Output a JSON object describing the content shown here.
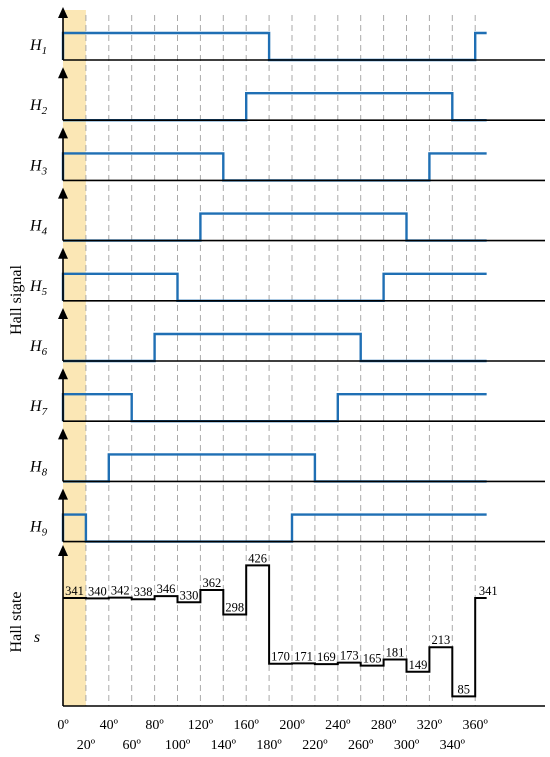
{
  "chart_data": {
    "type": "line",
    "ylabel_signals": "Hall signal",
    "ylabel_state": "Hall state",
    "state_symbol": "s",
    "x_ticks": [
      0,
      20,
      40,
      60,
      80,
      100,
      120,
      140,
      160,
      180,
      200,
      220,
      240,
      260,
      280,
      300,
      320,
      340,
      360
    ],
    "x_tick_labels": [
      "0º",
      "20º",
      "40º",
      "60º",
      "80º",
      "100º",
      "120º",
      "140º",
      "160º",
      "180º",
      "200º",
      "220º",
      "240º",
      "260º",
      "280º",
      "300º",
      "320º",
      "340º",
      "360º"
    ],
    "xlim": [
      0,
      370
    ],
    "highlight_range": [
      0,
      20
    ],
    "colors": {
      "signal": "#1f6fb4",
      "state": "#000000",
      "highlight": "#fbe7b5",
      "grid": "#aaaaaa"
    },
    "signals": [
      {
        "letter": "H",
        "sub": "1",
        "edges": [
          [
            0,
            1
          ],
          [
            180,
            0
          ],
          [
            360,
            1
          ]
        ]
      },
      {
        "letter": "H",
        "sub": "2",
        "edges": [
          [
            0,
            0
          ],
          [
            160,
            1
          ],
          [
            340,
            0
          ]
        ]
      },
      {
        "letter": "H",
        "sub": "3",
        "edges": [
          [
            0,
            1
          ],
          [
            140,
            0
          ],
          [
            320,
            1
          ]
        ]
      },
      {
        "letter": "H",
        "sub": "4",
        "edges": [
          [
            0,
            0
          ],
          [
            120,
            1
          ],
          [
            300,
            0
          ]
        ]
      },
      {
        "letter": "H",
        "sub": "5",
        "edges": [
          [
            0,
            1
          ],
          [
            100,
            0
          ],
          [
            280,
            1
          ]
        ]
      },
      {
        "letter": "H",
        "sub": "6",
        "edges": [
          [
            0,
            0
          ],
          [
            80,
            1
          ],
          [
            260,
            0
          ]
        ]
      },
      {
        "letter": "H",
        "sub": "7",
        "edges": [
          [
            0,
            1
          ],
          [
            60,
            0
          ],
          [
            240,
            1
          ]
        ]
      },
      {
        "letter": "H",
        "sub": "8",
        "edges": [
          [
            0,
            0
          ],
          [
            40,
            1
          ],
          [
            220,
            0
          ]
        ]
      },
      {
        "letter": "H",
        "sub": "9",
        "edges": [
          [
            0,
            1
          ],
          [
            20,
            0
          ],
          [
            200,
            1
          ]
        ]
      }
    ],
    "states": [
      {
        "start": 0,
        "end": 20,
        "value": 341
      },
      {
        "start": 20,
        "end": 40,
        "value": 340
      },
      {
        "start": 40,
        "end": 60,
        "value": 342
      },
      {
        "start": 60,
        "end": 80,
        "value": 338
      },
      {
        "start": 80,
        "end": 100,
        "value": 346
      },
      {
        "start": 100,
        "end": 120,
        "value": 330
      },
      {
        "start": 120,
        "end": 140,
        "value": 362
      },
      {
        "start": 140,
        "end": 160,
        "value": 298
      },
      {
        "start": 160,
        "end": 180,
        "value": 426
      },
      {
        "start": 180,
        "end": 200,
        "value": 170
      },
      {
        "start": 200,
        "end": 220,
        "value": 171
      },
      {
        "start": 220,
        "end": 240,
        "value": 169
      },
      {
        "start": 240,
        "end": 260,
        "value": 173
      },
      {
        "start": 260,
        "end": 280,
        "value": 165
      },
      {
        "start": 280,
        "end": 300,
        "value": 181
      },
      {
        "start": 300,
        "end": 320,
        "value": 149
      },
      {
        "start": 320,
        "end": 340,
        "value": 213
      },
      {
        "start": 340,
        "end": 360,
        "value": 85
      },
      {
        "start": 360,
        "end": 370,
        "value": 341
      }
    ],
    "state_ylim": [
      60,
      440
    ]
  }
}
